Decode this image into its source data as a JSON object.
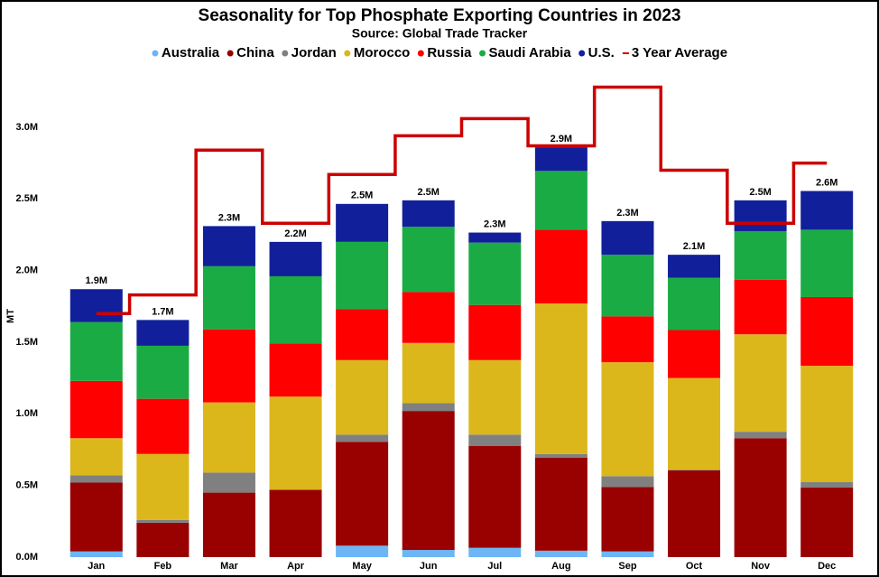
{
  "chart_data": {
    "type": "stacked_bar",
    "title": "Seasonality for Top Phosphate Exporting Countries in 2023",
    "subtitle": "Source: Global Trade Tracker",
    "y_label": "MT",
    "categories": [
      "Jan",
      "Feb",
      "Mar",
      "Apr",
      "May",
      "Jun",
      "Jul",
      "Aug",
      "Sep",
      "Oct",
      "Nov",
      "Dec"
    ],
    "series": [
      {
        "name": "Australia",
        "color": "#6cb6f5",
        "values": [
          40000,
          0,
          0,
          0,
          80000,
          50000,
          65000,
          45000,
          40000,
          0,
          0,
          0
        ]
      },
      {
        "name": "China",
        "color": "#990000",
        "values": [
          480000,
          240000,
          450000,
          470000,
          725000,
          970000,
          710000,
          650000,
          450000,
          605000,
          830000,
          485000
        ]
      },
      {
        "name": "Jordan",
        "color": "#808080",
        "values": [
          50000,
          20000,
          140000,
          0,
          50000,
          55000,
          80000,
          25000,
          75000,
          5000,
          45000,
          40000
        ]
      },
      {
        "name": "Morocco",
        "color": "#dbb71c",
        "values": [
          260000,
          460000,
          490000,
          650000,
          520000,
          420000,
          520000,
          1050000,
          795000,
          640000,
          680000,
          810000
        ]
      },
      {
        "name": "Russia",
        "color": "#ff0000",
        "values": [
          400000,
          385000,
          510000,
          370000,
          355000,
          355000,
          385000,
          515000,
          320000,
          335000,
          380000,
          480000
        ]
      },
      {
        "name": "Saudi Arabia",
        "color": "#1aab45",
        "values": [
          410000,
          370000,
          440000,
          470000,
          470000,
          455000,
          435000,
          410000,
          430000,
          365000,
          340000,
          470000
        ]
      },
      {
        "name": "U.S.",
        "color": "#11209a",
        "values": [
          230000,
          180000,
          280000,
          240000,
          265000,
          185000,
          70000,
          165000,
          235000,
          160000,
          215000,
          270000
        ]
      }
    ],
    "total_labels": [
      "1.9M",
      "1.7M",
      "2.3M",
      "2.2M",
      "2.5M",
      "2.5M",
      "2.3M",
      "2.9M",
      "2.3M",
      "2.1M",
      "2.5M",
      "2.6M"
    ],
    "average": {
      "name": "3 Year Average",
      "color": "#cc0000",
      "values": [
        1700000,
        1830000,
        2840000,
        2330000,
        2670000,
        2940000,
        3060000,
        2870000,
        3280000,
        2700000,
        2330000,
        2750000
      ]
    },
    "ylim": [
      0,
      3300000
    ],
    "yticks": [
      {
        "value": 0,
        "label": "0.0M"
      },
      {
        "value": 500000,
        "label": "0.5M"
      },
      {
        "value": 1000000,
        "label": "1.0M"
      },
      {
        "value": 1500000,
        "label": "1.5M"
      },
      {
        "value": 2000000,
        "label": "2.0M"
      },
      {
        "value": 2500000,
        "label": "2.5M"
      },
      {
        "value": 3000000,
        "label": "3.0M"
      }
    ]
  }
}
